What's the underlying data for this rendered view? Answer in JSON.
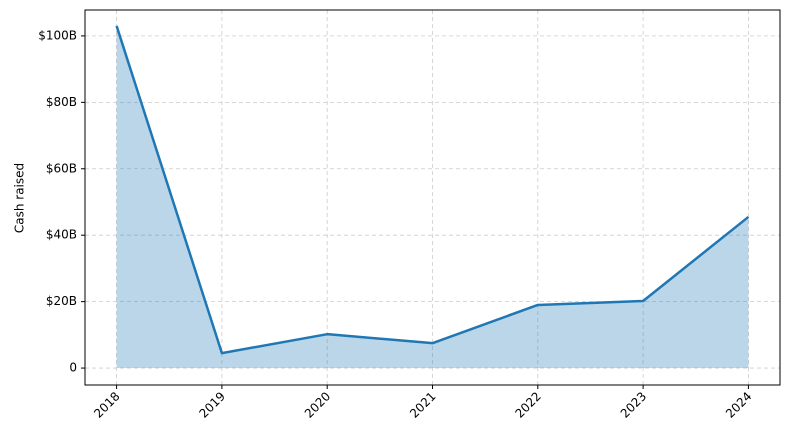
{
  "chart_data": {
    "type": "area",
    "ylabel": "Cash raised",
    "x": [
      2018,
      2019,
      2020,
      2021,
      2022,
      2023,
      2024
    ],
    "values": [
      103,
      4.5,
      10.2,
      7.5,
      19,
      20.2,
      45.5
    ],
    "color": "#1f77b4",
    "xlim": [
      2017.7,
      2024.3
    ],
    "xticks": [
      2018,
      2019,
      2020,
      2021,
      2022,
      2023,
      2024
    ],
    "ylim": [
      -5.1,
      107.8
    ],
    "yticks": [
      0,
      {
        "value": 20,
        "label": "$20B"
      },
      {
        "value": 40,
        "label": "$40B"
      },
      {
        "value": 60,
        "label": "$60B"
      },
      {
        "value": 80,
        "label": "$80B"
      },
      {
        "value": 100,
        "label": "$100B"
      }
    ],
    "grid": true
  }
}
